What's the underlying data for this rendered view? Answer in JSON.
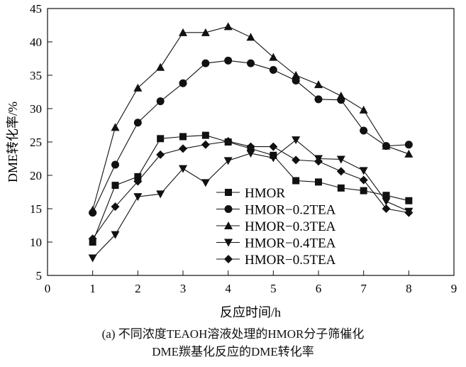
{
  "chart_data": {
    "type": "line",
    "xlabel": "反应时间/h",
    "ylabel": "DME转化率/%",
    "xlim": [
      0,
      9
    ],
    "ylim": [
      5,
      45
    ],
    "xticks": [
      0,
      1,
      2,
      3,
      4,
      5,
      6,
      7,
      8,
      9
    ],
    "yticks": [
      5,
      10,
      15,
      20,
      25,
      30,
      35,
      40,
      45
    ],
    "grid": false,
    "legend_position": "bottom-center",
    "x": [
      1,
      1.5,
      2,
      2.5,
      3,
      3.5,
      4,
      4.5,
      5,
      5.5,
      6,
      6.5,
      7,
      7.5,
      8
    ],
    "series": [
      {
        "name": "HMOR",
        "marker": "square",
        "values": [
          10,
          18.5,
          19.8,
          25.5,
          25.8,
          26,
          25,
          24,
          23,
          19.2,
          19,
          18.1,
          17.7,
          17,
          16.2
        ]
      },
      {
        "name": "HMOR−0.2TEA",
        "marker": "circle",
        "values": [
          14.4,
          21.6,
          27.9,
          31.1,
          33.8,
          36.8,
          37.2,
          36.8,
          35.8,
          34.2,
          31.4,
          31.3,
          26.7,
          24.4,
          24.6
        ]
      },
      {
        "name": "HMOR−0.3TEA",
        "marker": "triangle-up",
        "values": [
          14.8,
          27.2,
          33.1,
          36.2,
          41.4,
          41.4,
          42.3,
          40.7,
          37.7,
          35,
          33.6,
          31.9,
          29.8,
          24.4,
          23.2
        ]
      },
      {
        "name": "HMOR−0.4TEA",
        "marker": "triangle-down",
        "values": [
          7.6,
          11.1,
          16.8,
          17.2,
          21,
          18.9,
          22.2,
          23.3,
          22.6,
          25.3,
          22.5,
          22.4,
          20.7,
          16.1,
          14.6
        ]
      },
      {
        "name": "HMOR−0.5TEA",
        "marker": "diamond",
        "values": [
          10.5,
          15.3,
          19.1,
          23.1,
          24,
          24.6,
          25.1,
          24.3,
          24.3,
          22.3,
          22.1,
          20.6,
          19.3,
          15,
          14.4
        ]
      }
    ],
    "caption_line1": "(a) 不同浓度TEAOH溶液处理的HMOR分子筛催化",
    "caption_line2": "DME羰基化反应的DME转化率"
  }
}
